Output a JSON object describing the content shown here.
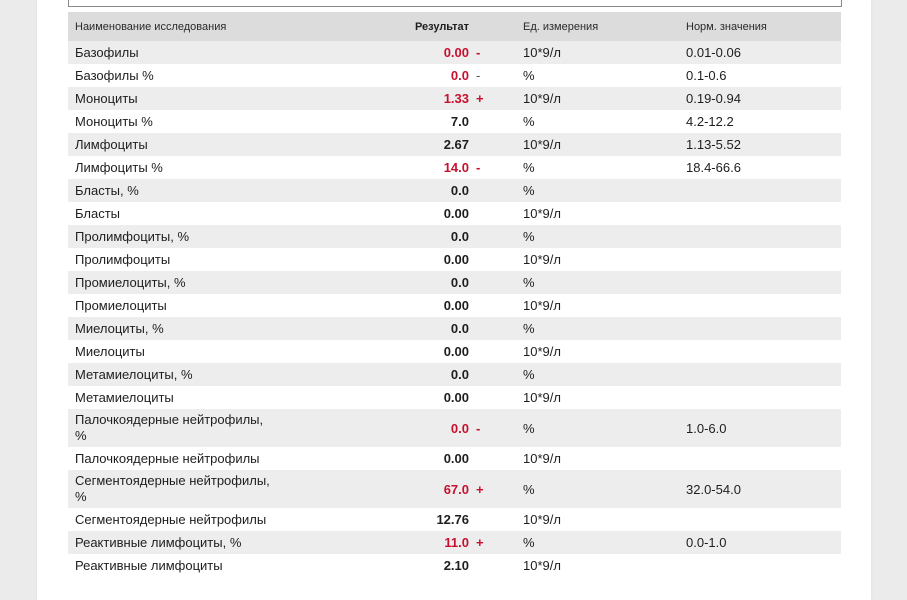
{
  "table": {
    "headers": {
      "name": "Наименование исследования",
      "result": "Результат",
      "unit": "Ед. измерения",
      "reference": "Норм. значения"
    },
    "rows": [
      {
        "name": "Базофилы",
        "result": "0.00",
        "flag": "-",
        "unit": "10*9/л",
        "reference": "0.01-0.06",
        "abnormal": true
      },
      {
        "name": "Базофилы %",
        "result": "0.0",
        "flag": "-",
        "unit": "%",
        "reference": "0.1-0.6",
        "abnormal": true
      },
      {
        "name": "Моноциты",
        "result": "1.33",
        "flag": "+",
        "unit": "10*9/л",
        "reference": "0.19-0.94",
        "abnormal": true
      },
      {
        "name": "Моноциты %",
        "result": "7.0",
        "flag": "",
        "unit": "%",
        "reference": "4.2-12.2",
        "abnormal": false
      },
      {
        "name": "Лимфоциты",
        "result": "2.67",
        "flag": "",
        "unit": "10*9/л",
        "reference": "1.13-5.52",
        "abnormal": false
      },
      {
        "name": "Лимфоциты %",
        "result": "14.0",
        "flag": "-",
        "unit": "%",
        "reference": "18.4-66.6",
        "abnormal": true
      },
      {
        "name": "Бласты, %",
        "result": "0.0",
        "flag": "",
        "unit": "%",
        "reference": "",
        "abnormal": false
      },
      {
        "name": "Бласты",
        "result": "0.00",
        "flag": "",
        "unit": "10*9/л",
        "reference": "",
        "abnormal": false
      },
      {
        "name": "Пролимфоциты, %",
        "result": "0.0",
        "flag": "",
        "unit": "%",
        "reference": "",
        "abnormal": false
      },
      {
        "name": "Пролимфоциты",
        "result": "0.00",
        "flag": "",
        "unit": "10*9/л",
        "reference": "",
        "abnormal": false
      },
      {
        "name": "Промиелоциты, %",
        "result": "0.0",
        "flag": "",
        "unit": "%",
        "reference": "",
        "abnormal": false
      },
      {
        "name": "Промиелоциты",
        "result": "0.00",
        "flag": "",
        "unit": "10*9/л",
        "reference": "",
        "abnormal": false
      },
      {
        "name": "Миелоциты, %",
        "result": "0.0",
        "flag": "",
        "unit": "%",
        "reference": "",
        "abnormal": false
      },
      {
        "name": "Миелоциты",
        "result": "0.00",
        "flag": "",
        "unit": "10*9/л",
        "reference": "",
        "abnormal": false
      },
      {
        "name": "Метамиелоциты, %",
        "result": "0.0",
        "flag": "",
        "unit": "%",
        "reference": "",
        "abnormal": false
      },
      {
        "name": "Метамиелоциты",
        "result": "0.00",
        "flag": "",
        "unit": "10*9/л",
        "reference": "",
        "abnormal": false
      },
      {
        "name": "Палочкоядерные нейтрофилы, %",
        "result": "0.0",
        "flag": "-",
        "unit": "%",
        "reference": "1.0-6.0",
        "abnormal": true
      },
      {
        "name": "Палочкоядерные нейтрофилы",
        "result": "0.00",
        "flag": "",
        "unit": "10*9/л",
        "reference": "",
        "abnormal": false
      },
      {
        "name": "Сегментоядерные нейтрофилы, %",
        "result": "67.0",
        "flag": "+",
        "unit": "%",
        "reference": "32.0-54.0",
        "abnormal": true
      },
      {
        "name": "Сегментоядерные нейтрофилы",
        "result": "12.76",
        "flag": "",
        "unit": "10*9/л",
        "reference": "",
        "abnormal": false
      },
      {
        "name": "Реактивные лимфоциты, %",
        "result": "11.0",
        "flag": "+",
        "unit": "%",
        "reference": "0.0-1.0",
        "abnormal": true
      },
      {
        "name": "Реактивные лимфоциты",
        "result": "2.10",
        "flag": "",
        "unit": "10*9/л",
        "reference": "",
        "abnormal": false
      }
    ]
  },
  "colors": {
    "abnormal": "#c8102e",
    "header_bg": "#dcdcdc",
    "stripe_bg": "#ededed"
  }
}
